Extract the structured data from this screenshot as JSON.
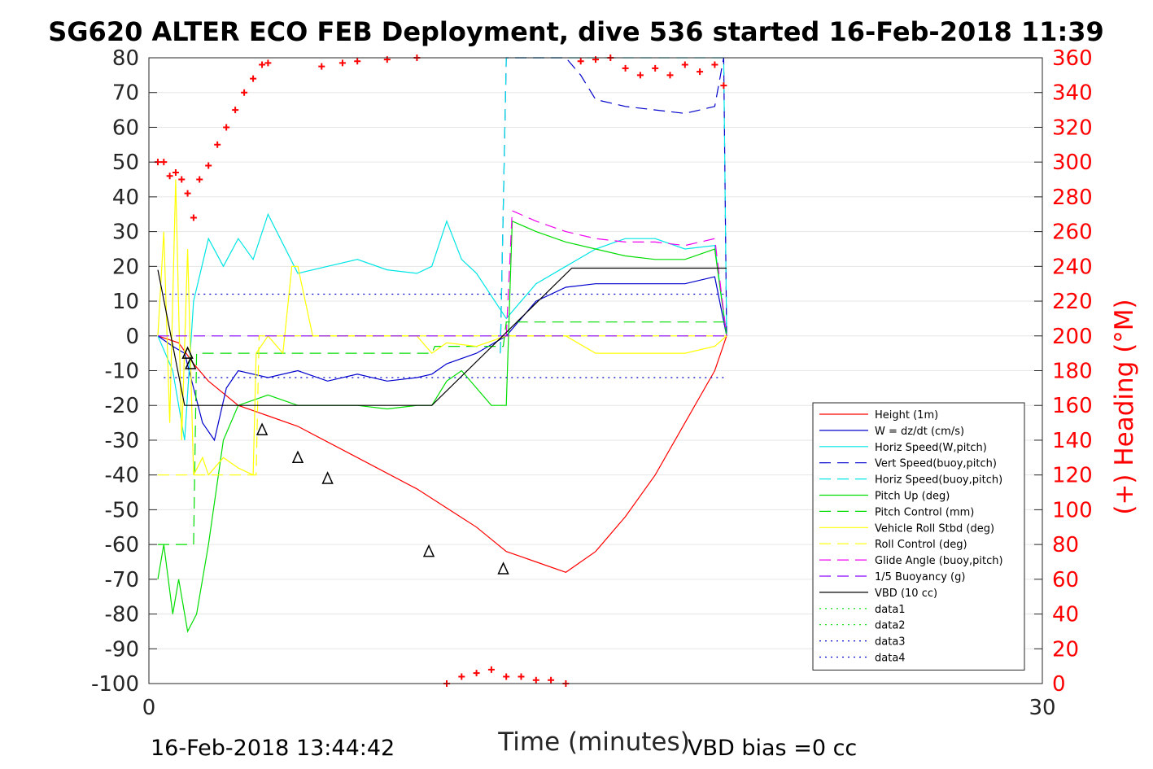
{
  "chart_data": {
    "type": "line",
    "title": "SG620 ALTER ECO FEB Deployment, dive 536 started 16-Feb-2018 11:39",
    "xlabel": "Time (minutes)",
    "ylabel_right": "(+) Heading (°M)",
    "footer_left": "16-Feb-2018 13:44:42",
    "footer_right": "VBD bias =0 cc",
    "xlim": [
      0,
      30
    ],
    "ylim_left": [
      -100,
      80
    ],
    "ylim_right": [
      0,
      360
    ],
    "x_ticks": [
      "0",
      "30"
    ],
    "y_ticks_left": [
      "80",
      "70",
      "60",
      "50",
      "40",
      "30",
      "20",
      "10",
      "0",
      "-10",
      "-20",
      "-30",
      "-40",
      "-50",
      "-60",
      "-70",
      "-80",
      "-90",
      "-100"
    ],
    "y_ticks_right": [
      "360",
      "340",
      "320",
      "300",
      "280",
      "260",
      "240",
      "220",
      "200",
      "180",
      "160",
      "140",
      "120",
      "100",
      "80",
      "60",
      "40",
      "20",
      "0"
    ],
    "grid": true,
    "legend_position": "bottom-right",
    "colors": {
      "red": "#ff0000",
      "blue": "#0000cc",
      "cyan": "#00e5e5",
      "green": "#00dd00",
      "yellow": "#ffff00",
      "magenta": "#ee00ee",
      "purple": "#8800ff",
      "black": "#000000"
    },
    "series": [
      {
        "name": "Height (1m)",
        "color": "#ff0000",
        "dash": "solid",
        "x": [
          0.3,
          1.0,
          1.5,
          2.0,
          3.0,
          4.0,
          5.0,
          7.0,
          9.0,
          11.0,
          12.0,
          13.0,
          14.0,
          15.0,
          16.0,
          17.0,
          18.0,
          19.0,
          19.4
        ],
        "y": [
          0,
          -2,
          -8,
          -13,
          -20,
          -23,
          -26,
          -35,
          -44,
          -55,
          -62,
          -65,
          -68,
          -62,
          -52,
          -40,
          -25,
          -10,
          0
        ]
      },
      {
        "name": "W = dz/dt (cm/s)",
        "color": "#0000cc",
        "dash": "solid",
        "x": [
          0.3,
          0.8,
          1.2,
          1.5,
          1.8,
          2.2,
          2.6,
          3.0,
          4.0,
          5.0,
          6.0,
          7.0,
          8.0,
          9.0,
          9.5,
          10.0,
          11.0,
          12.0,
          13.0,
          14.0,
          15.0,
          16.0,
          17.0,
          18.0,
          19.0,
          19.4
        ],
        "y": [
          0,
          -3,
          -5,
          -15,
          -25,
          -30,
          -15,
          -10,
          -12,
          -10,
          -13,
          -11,
          -13,
          -12,
          -11,
          -8,
          -5,
          0,
          10,
          14,
          15,
          15,
          15,
          15,
          17,
          0
        ]
      },
      {
        "name": "Horiz Speed(W,pitch)",
        "color": "#00e5e5",
        "dash": "solid",
        "x": [
          0.3,
          0.8,
          1.2,
          1.5,
          2.0,
          2.5,
          3.0,
          3.5,
          4.0,
          5.0,
          6.0,
          7.0,
          8.0,
          9.0,
          9.5,
          10.0,
          10.5,
          11.0,
          12.0,
          13.0,
          14.0,
          15.0,
          16.0,
          17.0,
          18.0,
          19.0,
          19.4
        ],
        "y": [
          0,
          -10,
          -30,
          10,
          28,
          20,
          28,
          22,
          35,
          18,
          20,
          22,
          19,
          18,
          20,
          33,
          22,
          18,
          5,
          15,
          20,
          25,
          28,
          28,
          25,
          26,
          0
        ]
      },
      {
        "name": "Vert Speed(buoy,pitch)",
        "color": "#0000cc",
        "dash": "dash",
        "x": [
          11.8,
          12.0,
          12.2,
          13.0,
          14.0,
          14.5,
          15.0,
          16.0,
          17.0,
          18.0,
          19.0,
          19.3,
          19.4
        ],
        "y": [
          -5,
          80,
          80,
          80,
          80,
          75,
          68,
          66,
          65,
          64,
          66,
          80,
          0
        ]
      },
      {
        "name": "Horiz Speed(buoy,pitch)",
        "color": "#00e5e5",
        "dash": "dash",
        "x": [
          11.8,
          12.0,
          12.2,
          19.3,
          19.4
        ],
        "y": [
          -5,
          80,
          80,
          80,
          0
        ]
      },
      {
        "name": "Pitch Up (deg)",
        "color": "#00dd00",
        "dash": "solid",
        "x": [
          0.3,
          0.5,
          0.8,
          1.0,
          1.3,
          1.6,
          2.0,
          2.5,
          3.0,
          4.0,
          5.0,
          6.0,
          7.0,
          8.0,
          9.0,
          9.5,
          10.0,
          10.5,
          11.0,
          11.5,
          12.0,
          12.2,
          13.0,
          14.0,
          15.0,
          16.0,
          17.0,
          18.0,
          19.0,
          19.4
        ],
        "y": [
          -70,
          -60,
          -80,
          -70,
          -85,
          -80,
          -60,
          -30,
          -20,
          -17,
          -20,
          -20,
          -20,
          -21,
          -20,
          -20,
          -13,
          -10,
          -15,
          -20,
          -20,
          33,
          30,
          27,
          25,
          23,
          22,
          22,
          25,
          0
        ]
      },
      {
        "name": "Pitch Control (mm)",
        "color": "#00dd00",
        "dash": "dash",
        "x": [
          0.3,
          1.5,
          1.6,
          9.5,
          9.6,
          11.9,
          12.0,
          19.4
        ],
        "y": [
          -60,
          -60,
          -5,
          -5,
          -3,
          -3,
          4,
          4
        ]
      },
      {
        "name": "Vehicle Roll Stbd (deg)",
        "color": "#ffff00",
        "dash": "solid",
        "x": [
          0.3,
          0.5,
          0.7,
          0.9,
          1.1,
          1.3,
          1.5,
          1.8,
          2.0,
          2.5,
          3.0,
          3.5,
          3.6,
          4.0,
          4.5,
          4.8,
          5.0,
          5.5,
          6.0,
          7.0,
          8.0,
          9.0,
          9.5,
          10.0,
          11.0,
          12.0,
          13.0,
          14.0,
          15.0,
          16.0,
          17.0,
          18.0,
          19.0,
          19.4
        ],
        "y": [
          0,
          30,
          -25,
          45,
          -30,
          25,
          -40,
          -35,
          -40,
          -35,
          -38,
          -40,
          -5,
          0,
          -5,
          20,
          20,
          0,
          0,
          0,
          0,
          0,
          -5,
          -2,
          -3,
          0,
          0,
          0,
          -5,
          -5,
          -5,
          -5,
          -3,
          0
        ]
      },
      {
        "name": "Roll Control (deg)",
        "color": "#ffff00",
        "dash": "dash",
        "x": [
          0.3,
          3.6,
          3.7,
          19.4
        ],
        "y": [
          -40,
          -40,
          0,
          0
        ]
      },
      {
        "name": "Glide Angle (buoy,pitch)",
        "color": "#ee00ee",
        "dash": "dash",
        "x": [
          12.0,
          12.2,
          13.0,
          14.0,
          15.0,
          16.0,
          17.0,
          18.0,
          19.0,
          19.4
        ],
        "y": [
          0,
          36,
          33,
          30,
          28,
          27,
          27,
          26,
          28,
          0
        ]
      },
      {
        "name": "1/5 Buoyancy (g)",
        "color": "#8800ff",
        "dash": "dash",
        "x": [
          0.3,
          19.4
        ],
        "y": [
          0,
          0
        ]
      },
      {
        "name": "VBD (10 cc)",
        "color": "#000000",
        "dash": "solid",
        "x": [
          0.3,
          1.2,
          9.5,
          14.2,
          19.4
        ],
        "y": [
          19,
          -20,
          -20,
          19.5,
          19.5
        ]
      },
      {
        "name": "data1",
        "color": "#00dd00",
        "dash": "dot",
        "x": [],
        "y": []
      },
      {
        "name": "data2",
        "color": "#00dd00",
        "dash": "dot",
        "x": [],
        "y": []
      },
      {
        "name": "data3",
        "color": "#0000cc",
        "dash": "dot",
        "x": [
          0.5,
          19.4
        ],
        "y": [
          12,
          12
        ]
      },
      {
        "name": "data4",
        "color": "#0000cc",
        "dash": "dot",
        "x": [
          0.5,
          19.4
        ],
        "y": [
          -12,
          -12
        ]
      }
    ],
    "heading_points": {
      "axis": "right",
      "color": "#ff0000",
      "x": [
        0.3,
        0.5,
        0.7,
        0.9,
        1.1,
        1.3,
        1.5,
        1.7,
        2.0,
        2.3,
        2.6,
        2.9,
        3.2,
        3.5,
        3.8,
        4.0,
        5.8,
        6.5,
        7.0,
        8.0,
        9.0,
        10.0,
        10.5,
        11.0,
        11.5,
        12.0,
        12.5,
        13.0,
        13.5,
        14.0,
        14.5,
        15.0,
        15.5,
        16.0,
        16.5,
        17.0,
        17.5,
        18.0,
        18.5,
        19.0,
        19.3
      ],
      "y": [
        300,
        300,
        292,
        294,
        290,
        282,
        268,
        290,
        298,
        310,
        320,
        330,
        340,
        348,
        356,
        357,
        355,
        357,
        358,
        359,
        360,
        0,
        4,
        6,
        8,
        4,
        4,
        2,
        2,
        0,
        358,
        359,
        360,
        354,
        350,
        354,
        350,
        356,
        352,
        356,
        344
      ]
    },
    "markers": {
      "type": "triangle",
      "x": [
        1.3,
        1.4,
        3.8,
        5.0,
        6.0,
        9.4,
        11.9
      ],
      "y": [
        -5,
        -8,
        -27,
        -35,
        -41,
        -62,
        -67
      ]
    }
  }
}
